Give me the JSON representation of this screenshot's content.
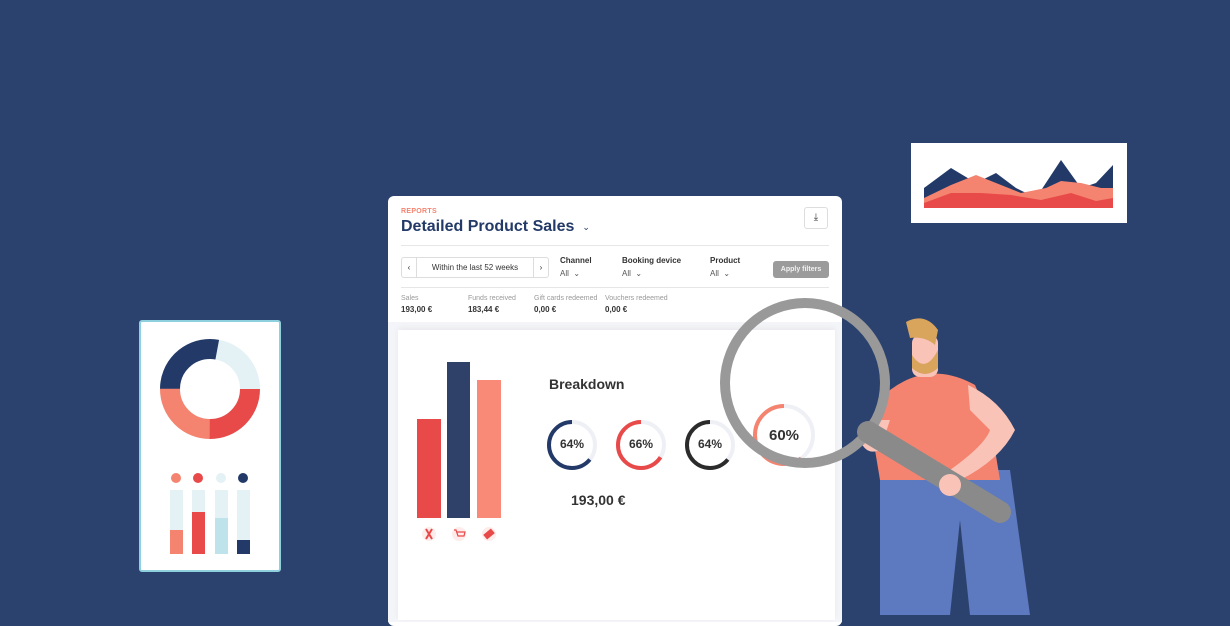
{
  "report": {
    "section_label": "REPORTS",
    "title": "Detailed Product Sales",
    "title_chevron_icon": "chevron-down-icon",
    "download_icon": "download-icon"
  },
  "filters": {
    "date_range": "Within the last 52 weeks",
    "prev_icon": "chevron-left-icon",
    "next_icon": "chevron-right-icon",
    "channel": {
      "label": "Channel",
      "value": "All"
    },
    "booking_device": {
      "label": "Booking device",
      "value": "All"
    },
    "product": {
      "label": "Product",
      "value": "All"
    },
    "apply_label": "Apply filters"
  },
  "summary": [
    {
      "label": "Sales",
      "value": "193,00 €"
    },
    {
      "label": "Funds received",
      "value": "183,44 €"
    },
    {
      "label": "Gift cards redeemed",
      "value": "0,00 €"
    },
    {
      "label": "Vouchers redeemed",
      "value": "0,00 €"
    }
  ],
  "breakdown": {
    "title": "Breakdown",
    "total": "193,00 €",
    "rings": [
      {
        "label": "64%",
        "percent": 64,
        "color": "#233a68"
      },
      {
        "label": "66%",
        "percent": 66,
        "color": "#e84a4a"
      },
      {
        "label": "64%",
        "percent": 64,
        "color": "#2b2b2b"
      },
      {
        "label": "60%",
        "percent": 60,
        "color": "#f4846f"
      }
    ],
    "bar_icons": [
      "person-icon",
      "cart-icon",
      "ticket-icon"
    ]
  },
  "colors": {
    "background": "#2c426e",
    "navy": "#233a68",
    "red": "#e84a4a",
    "salmon": "#f4846f",
    "light_blue": "#e4f1f5"
  }
}
